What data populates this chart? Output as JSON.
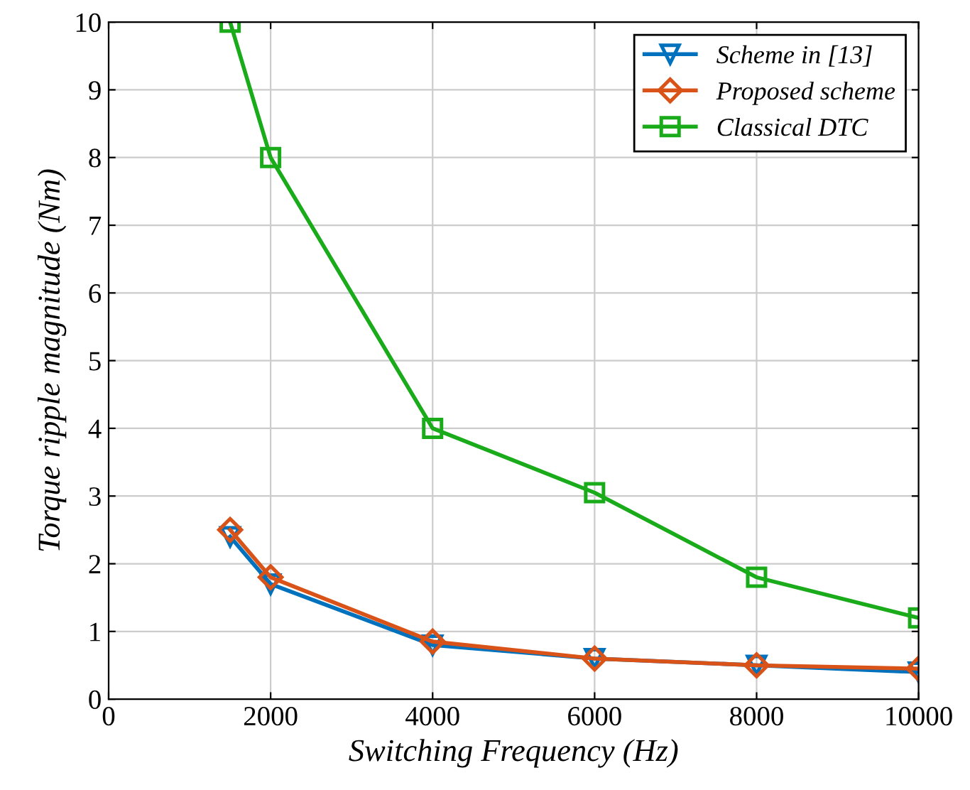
{
  "chart_data": {
    "type": "line",
    "xlabel": "Switching Frequency (Hz)",
    "ylabel": "Torque ripple magnitude (Nm)",
    "x": [
      1500,
      2000,
      4000,
      6000,
      8000,
      10000
    ],
    "series": [
      {
        "name": "Scheme in [13]",
        "color": "#0072bd",
        "marker": "triangle",
        "values": [
          2.4,
          1.7,
          0.8,
          0.6,
          0.5,
          0.4
        ]
      },
      {
        "name": "Proposed scheme",
        "color": "#d95319",
        "marker": "diamond",
        "values": [
          2.5,
          1.8,
          0.85,
          0.6,
          0.5,
          0.45
        ]
      },
      {
        "name": "Classical DTC",
        "color": "#1aab1a",
        "marker": "square",
        "values": [
          10,
          8,
          4,
          3.05,
          1.8,
          1.2
        ]
      }
    ],
    "xlim": [
      0,
      10000
    ],
    "xticks": [
      0,
      2000,
      4000,
      6000,
      8000,
      10000
    ],
    "ylim": [
      0,
      10
    ],
    "yticks": [
      0,
      1,
      2,
      3,
      4,
      5,
      6,
      7,
      8,
      9,
      10
    ],
    "grid": true,
    "legend": "top right",
    "line_style": "solid"
  }
}
